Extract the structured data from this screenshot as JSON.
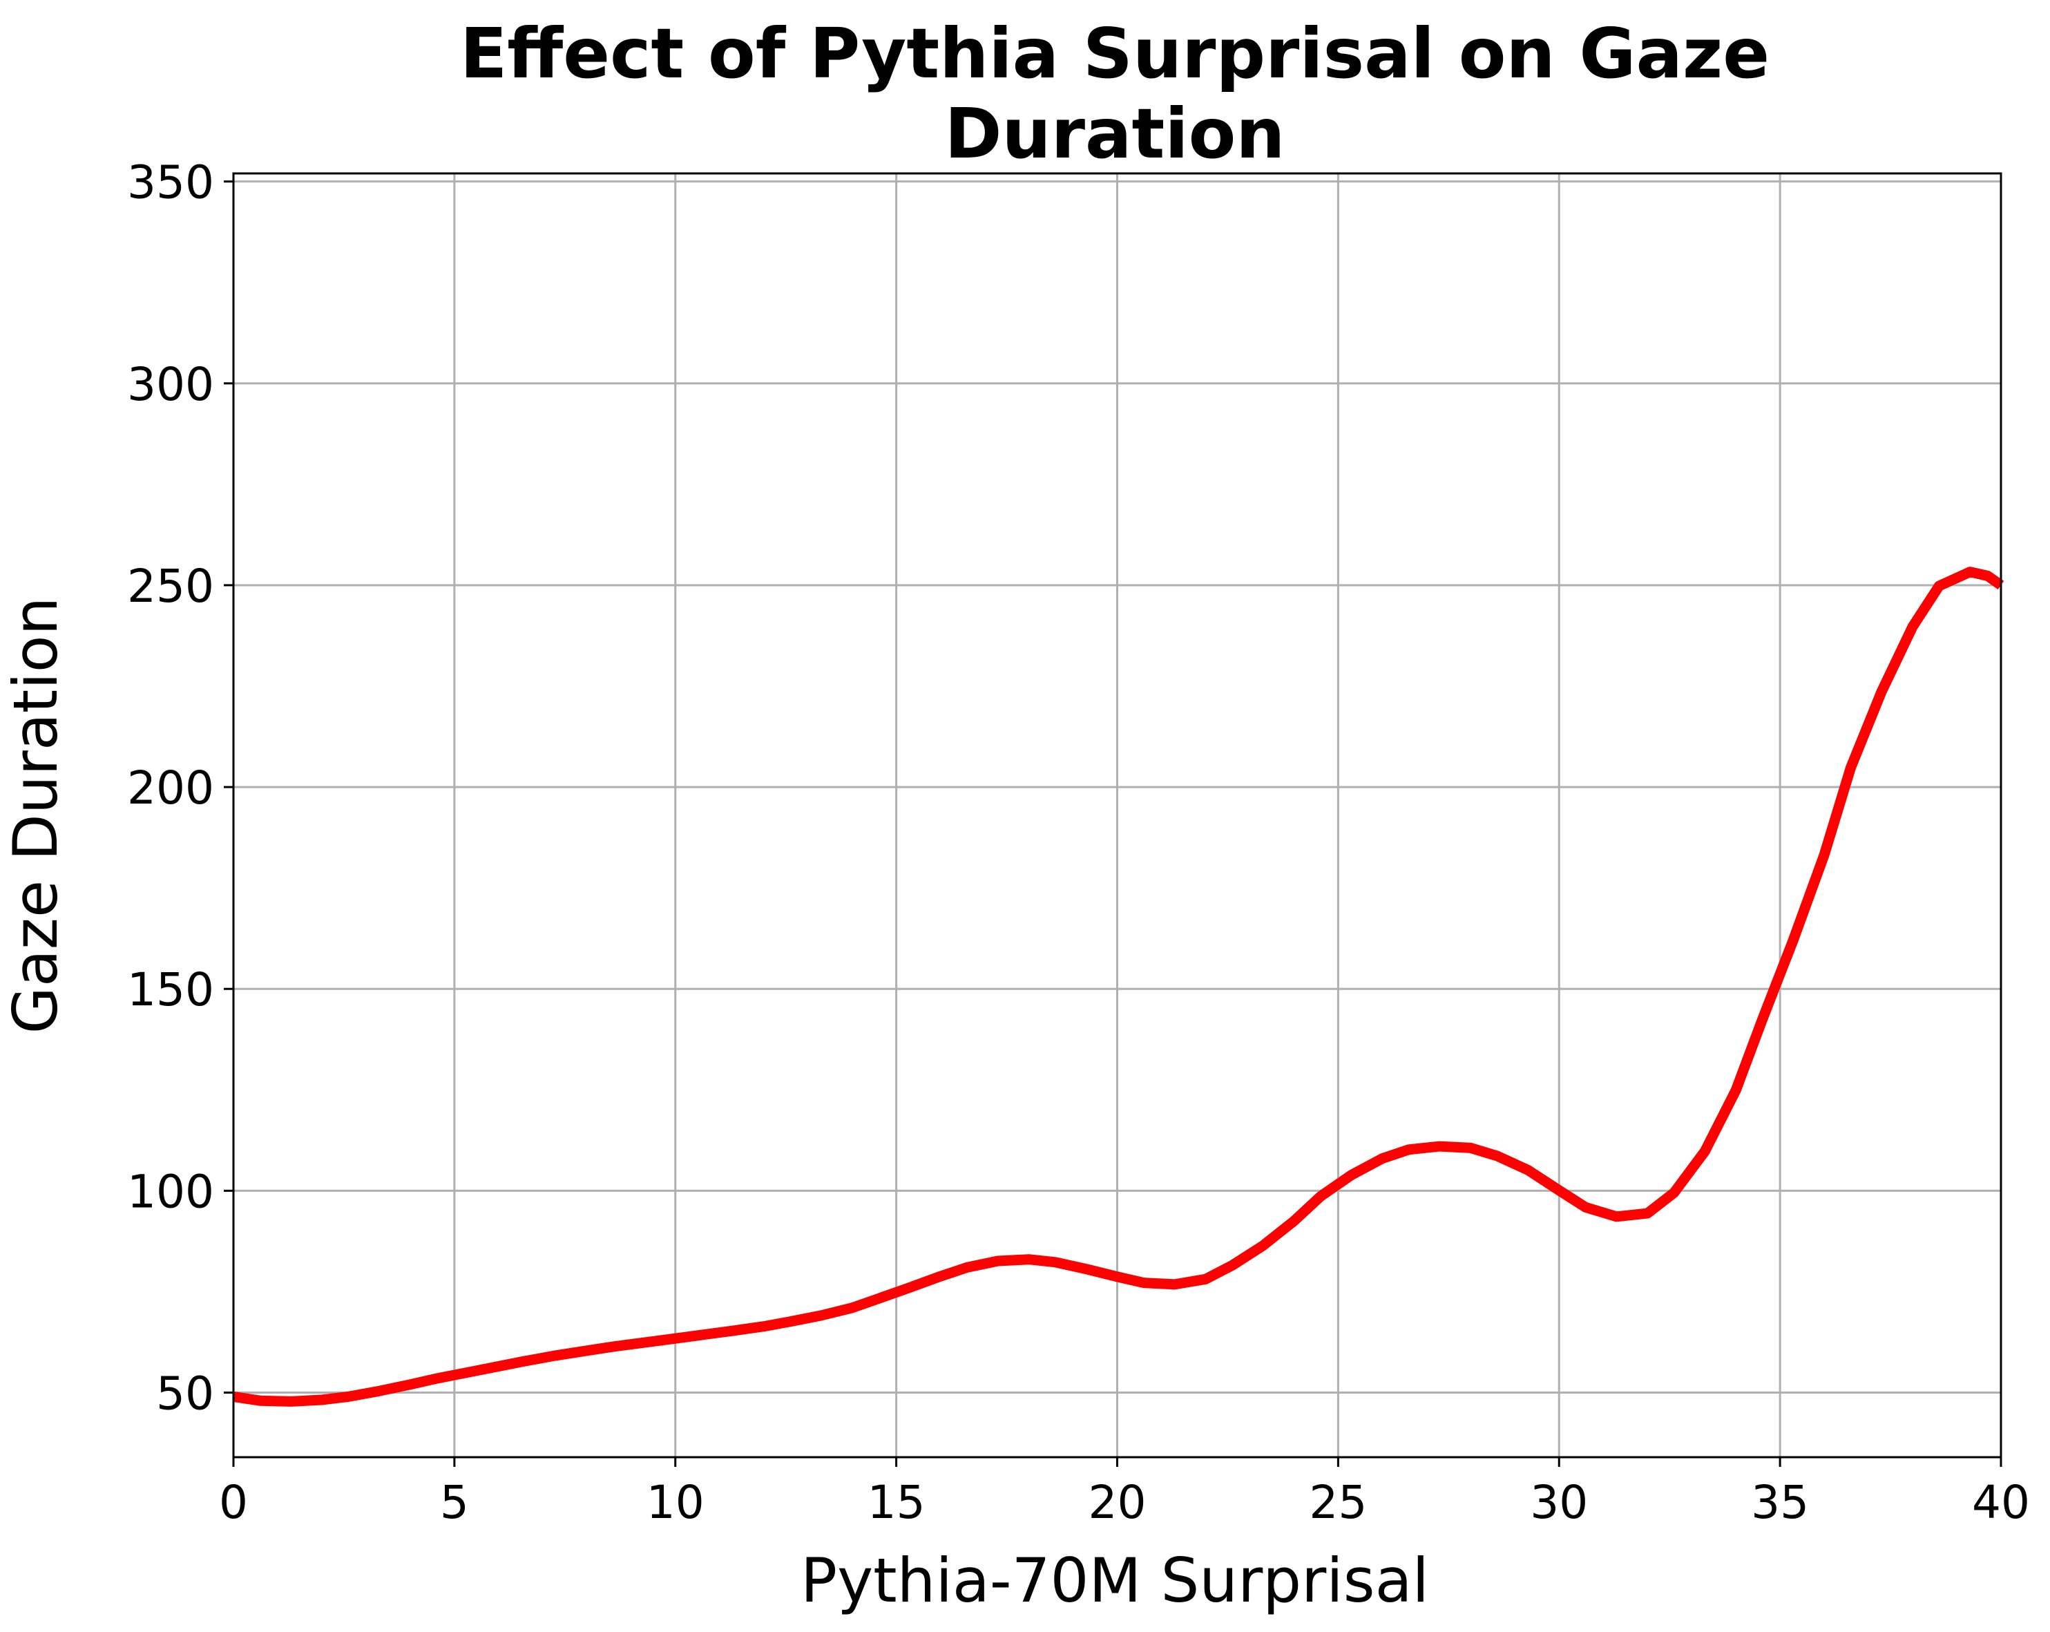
{
  "chart_data": {
    "type": "line",
    "title_lines": [
      "Effect of Pythia Surprisal on Gaze",
      "Duration"
    ],
    "xlabel": "Pythia-70M Surprisal",
    "ylabel": "Gaze Duration",
    "xlim": [
      0,
      40
    ],
    "ylim": [
      34,
      352
    ],
    "xticks": [
      0,
      5,
      10,
      15,
      20,
      25,
      30,
      35,
      40
    ],
    "yticks": [
      50,
      100,
      150,
      200,
      250,
      300,
      350
    ],
    "xtick_labels": [
      "0",
      "5",
      "10",
      "15",
      "20",
      "25",
      "30",
      "35",
      "40"
    ],
    "ytick_labels": [
      "50",
      "100",
      "150",
      "200",
      "250",
      "300",
      "350"
    ],
    "grid": true,
    "series": [
      {
        "color": "#ff0000",
        "x": [
          0,
          0.6,
          1.3,
          2.0,
          2.6,
          3.3,
          4.0,
          4.6,
          5.3,
          6.0,
          6.6,
          7.3,
          8.0,
          8.6,
          9.3,
          10.0,
          10.6,
          11.3,
          12.0,
          12.6,
          13.3,
          14.0,
          14.6,
          15.3,
          16.0,
          16.6,
          17.3,
          18.0,
          18.6,
          19.3,
          20.0,
          20.6,
          21.3,
          22.0,
          22.6,
          23.3,
          24.0,
          24.6,
          25.3,
          26.0,
          26.6,
          27.3,
          28.0,
          28.6,
          29.3,
          30.0,
          30.6,
          31.3,
          32.0,
          32.6,
          33.3,
          34.0,
          34.6,
          35.3,
          36.0,
          36.6,
          37.3,
          38.0,
          38.6,
          39.3,
          39.7,
          40.0
        ],
        "y": [
          49,
          48,
          47.8,
          48.2,
          49,
          50.4,
          52,
          53.5,
          55,
          56.5,
          57.8,
          59.2,
          60.4,
          61.4,
          62.4,
          63.4,
          64.3,
          65.3,
          66.4,
          67.6,
          69.1,
          71,
          73.3,
          76,
          78.8,
          81,
          82.6,
          83,
          82.3,
          80.6,
          78.7,
          77.2,
          76.8,
          78.1,
          81.5,
          86.4,
          92.5,
          98.6,
          103.9,
          108,
          110.2,
          111,
          110.6,
          108.6,
          105.1,
          100.1,
          95.9,
          93.6,
          94.4,
          99.5,
          109.8,
          124.9,
          142.4,
          162.1,
          183.2,
          204.8,
          223.7,
          239.7,
          249.8,
          253.3,
          252.3,
          250
        ]
      }
    ]
  }
}
